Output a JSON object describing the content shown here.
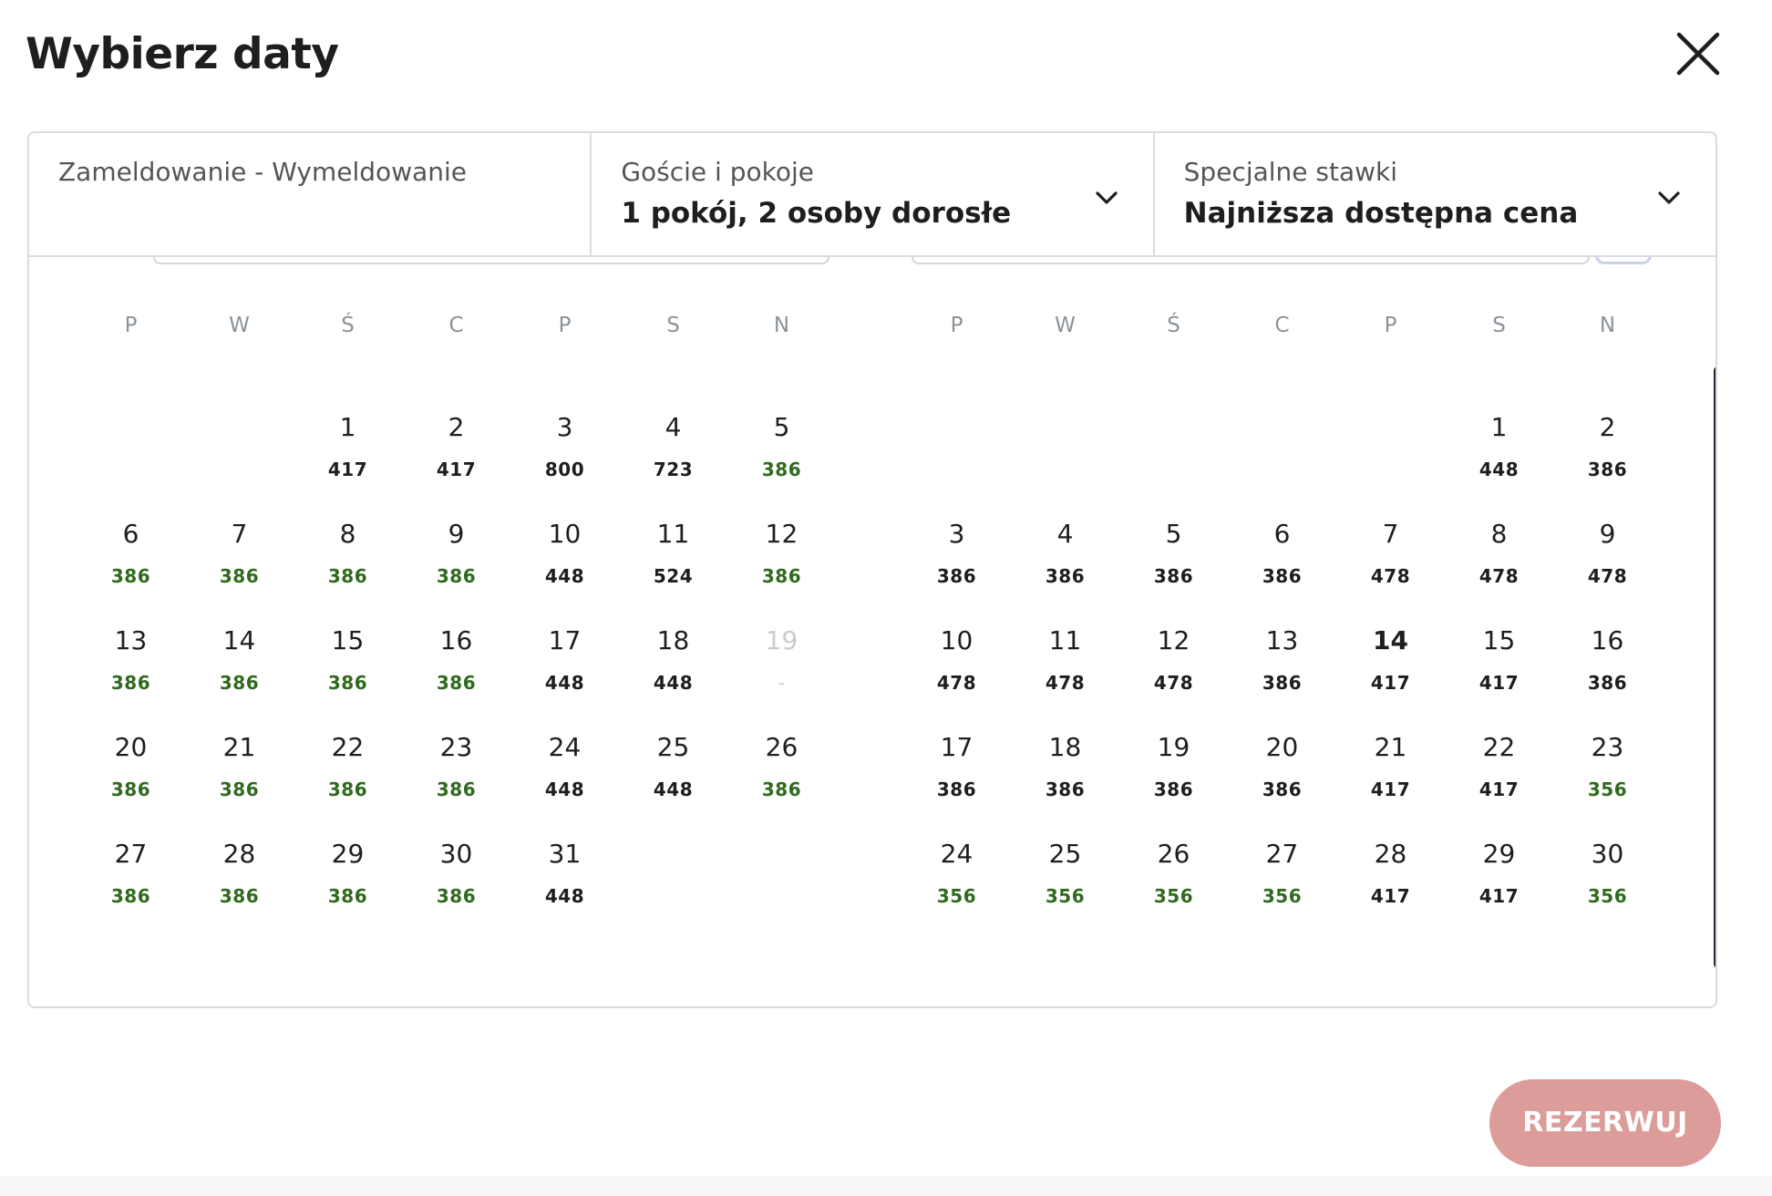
{
  "header": {
    "title": "Wybierz daty"
  },
  "fields": {
    "dates": {
      "label": "Zameldowanie - Wymeldowanie",
      "value": ""
    },
    "guests": {
      "label": "Goście i pokoje",
      "value": "1 pokój, 2 osoby dorosłe"
    },
    "rates": {
      "label": "Specjalne stawki",
      "value": "Najniższa dostępna cena"
    }
  },
  "weekdays": [
    "P",
    "W",
    "Ś",
    "C",
    "P",
    "S",
    "N"
  ],
  "months": [
    {
      "offset": 2,
      "days": [
        {
          "d": "1",
          "p": "417"
        },
        {
          "d": "2",
          "p": "417"
        },
        {
          "d": "3",
          "p": "800"
        },
        {
          "d": "4",
          "p": "723"
        },
        {
          "d": "5",
          "p": "386",
          "low": true
        },
        {
          "d": "6",
          "p": "386",
          "low": true
        },
        {
          "d": "7",
          "p": "386",
          "low": true
        },
        {
          "d": "8",
          "p": "386",
          "low": true
        },
        {
          "d": "9",
          "p": "386",
          "low": true
        },
        {
          "d": "10",
          "p": "448"
        },
        {
          "d": "11",
          "p": "524"
        },
        {
          "d": "12",
          "p": "386",
          "low": true
        },
        {
          "d": "13",
          "p": "386",
          "low": true
        },
        {
          "d": "14",
          "p": "386",
          "low": true
        },
        {
          "d": "15",
          "p": "386",
          "low": true
        },
        {
          "d": "16",
          "p": "386",
          "low": true
        },
        {
          "d": "17",
          "p": "448"
        },
        {
          "d": "18",
          "p": "448"
        },
        {
          "d": "19",
          "p": "-",
          "disabled": true
        },
        {
          "d": "20",
          "p": "386",
          "low": true
        },
        {
          "d": "21",
          "p": "386",
          "low": true
        },
        {
          "d": "22",
          "p": "386",
          "low": true
        },
        {
          "d": "23",
          "p": "386",
          "low": true
        },
        {
          "d": "24",
          "p": "448"
        },
        {
          "d": "25",
          "p": "448"
        },
        {
          "d": "26",
          "p": "386",
          "low": true
        },
        {
          "d": "27",
          "p": "386",
          "low": true
        },
        {
          "d": "28",
          "p": "386",
          "low": true
        },
        {
          "d": "29",
          "p": "386",
          "low": true
        },
        {
          "d": "30",
          "p": "386",
          "low": true
        },
        {
          "d": "31",
          "p": "448"
        }
      ]
    },
    {
      "offset": 5,
      "days": [
        {
          "d": "1",
          "p": "448"
        },
        {
          "d": "2",
          "p": "386"
        },
        {
          "d": "3",
          "p": "386"
        },
        {
          "d": "4",
          "p": "386"
        },
        {
          "d": "5",
          "p": "386"
        },
        {
          "d": "6",
          "p": "386"
        },
        {
          "d": "7",
          "p": "478"
        },
        {
          "d": "8",
          "p": "478"
        },
        {
          "d": "9",
          "p": "478"
        },
        {
          "d": "10",
          "p": "478"
        },
        {
          "d": "11",
          "p": "478"
        },
        {
          "d": "12",
          "p": "478"
        },
        {
          "d": "13",
          "p": "386"
        },
        {
          "d": "14",
          "p": "417",
          "today": true
        },
        {
          "d": "15",
          "p": "417"
        },
        {
          "d": "16",
          "p": "386"
        },
        {
          "d": "17",
          "p": "386"
        },
        {
          "d": "18",
          "p": "386"
        },
        {
          "d": "19",
          "p": "386"
        },
        {
          "d": "20",
          "p": "386"
        },
        {
          "d": "21",
          "p": "417"
        },
        {
          "d": "22",
          "p": "417"
        },
        {
          "d": "23",
          "p": "356",
          "low": true
        },
        {
          "d": "24",
          "p": "356",
          "low": true
        },
        {
          "d": "25",
          "p": "356",
          "low": true
        },
        {
          "d": "26",
          "p": "356",
          "low": true
        },
        {
          "d": "27",
          "p": "356",
          "low": true
        },
        {
          "d": "28",
          "p": "417"
        },
        {
          "d": "29",
          "p": "417"
        },
        {
          "d": "30",
          "p": "356",
          "low": true
        }
      ]
    }
  ],
  "footer": {
    "book_label": "REZERWUJ"
  },
  "colors": {
    "low_price": "#2f6a1e",
    "book_button": "#dc9c9a",
    "scrollbar": "#1f2a36"
  },
  "icons": {
    "close": "close-icon",
    "chevron": "chevron-down-icon"
  }
}
